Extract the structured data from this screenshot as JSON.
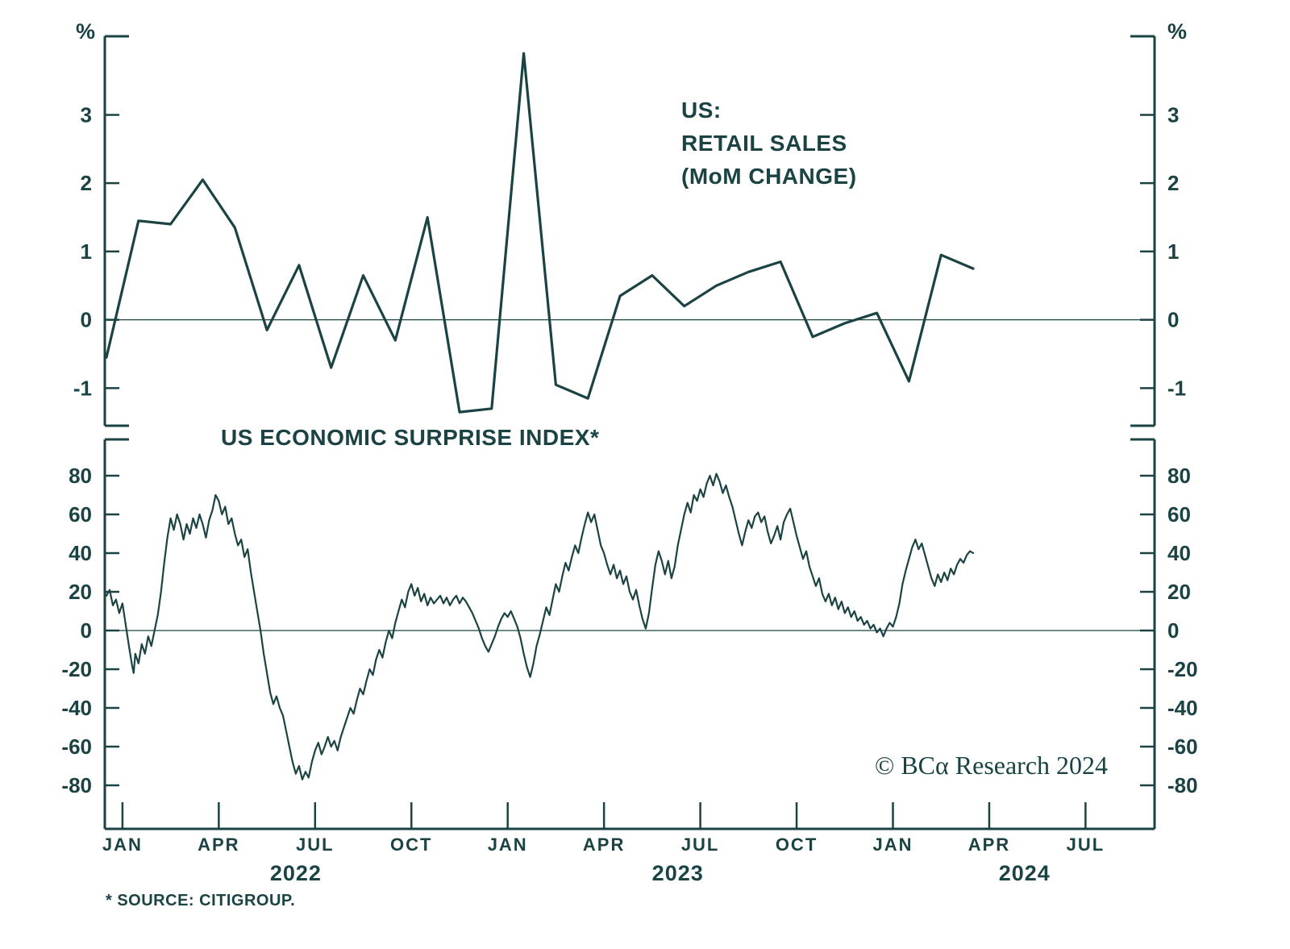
{
  "colors": {
    "ink": "#1b4343",
    "background": "#ffffff"
  },
  "titles": {
    "top_line1": "US:",
    "top_line2": "RETAIL SALES",
    "top_line3": "(MoM CHANGE)",
    "bottom_panel": "US ECONOMIC SURPRISE INDEX*",
    "copyright": "© BCα Research 2024",
    "footnote": "* SOURCE: CITIGROUP.",
    "y_unit_left": "%",
    "y_unit_right": "%"
  },
  "x_axis": {
    "xlim_months": [
      -0.55,
      32.15
    ],
    "ticks": [
      {
        "m": 0,
        "label": "JAN"
      },
      {
        "m": 3,
        "label": "APR"
      },
      {
        "m": 6,
        "label": "JUL"
      },
      {
        "m": 9,
        "label": "OCT"
      },
      {
        "m": 12,
        "label": "JAN"
      },
      {
        "m": 15,
        "label": "APR"
      },
      {
        "m": 18,
        "label": "JUL"
      },
      {
        "m": 21,
        "label": "OCT"
      },
      {
        "m": 24,
        "label": "JAN"
      },
      {
        "m": 27,
        "label": "APR"
      },
      {
        "m": 30,
        "label": "JUL"
      }
    ],
    "years": [
      {
        "m": 5.4,
        "label": "2022"
      },
      {
        "m": 17.3,
        "label": "2023"
      },
      {
        "m": 28.1,
        "label": "2024"
      }
    ]
  },
  "chart_data": [
    {
      "type": "line",
      "title": "US: RETAIL SALES (MoM CHANGE)",
      "ylabel": "%",
      "ylim": [
        -1.55,
        4.15
      ],
      "yticks": [
        -1,
        0,
        1,
        2,
        3
      ],
      "x_start_month": -0.5,
      "x_step_months": 1,
      "values": [
        -0.55,
        1.45,
        1.4,
        2.05,
        1.35,
        -0.15,
        0.8,
        -0.7,
        0.65,
        -0.3,
        1.5,
        -1.35,
        -1.3,
        3.9,
        -0.95,
        -1.15,
        0.35,
        0.65,
        0.2,
        0.5,
        0.7,
        0.85,
        -0.25,
        -0.05,
        0.1,
        -0.9,
        0.95,
        0.75
      ]
    },
    {
      "type": "line",
      "title": "US ECONOMIC SURPRISE INDEX*",
      "ylim": [
        -102.5,
        98.75
      ],
      "yticks": [
        -80,
        -60,
        -40,
        -20,
        0,
        20,
        40,
        60,
        80
      ],
      "points": [
        [
          -0.5,
          18
        ],
        [
          -0.4,
          21
        ],
        [
          -0.3,
          13
        ],
        [
          -0.2,
          16
        ],
        [
          -0.1,
          9
        ],
        [
          0,
          14
        ],
        [
          0.1,
          3
        ],
        [
          0.2,
          -8
        ],
        [
          0.3,
          -18
        ],
        [
          0.35,
          -22
        ],
        [
          0.4,
          -12
        ],
        [
          0.5,
          -17
        ],
        [
          0.6,
          -7
        ],
        [
          0.7,
          -12
        ],
        [
          0.8,
          -3
        ],
        [
          0.9,
          -8
        ],
        [
          1.0,
          0
        ],
        [
          1.1,
          8
        ],
        [
          1.2,
          20
        ],
        [
          1.3,
          35
        ],
        [
          1.4,
          48
        ],
        [
          1.5,
          58
        ],
        [
          1.6,
          52
        ],
        [
          1.7,
          60
        ],
        [
          1.8,
          55
        ],
        [
          1.9,
          47
        ],
        [
          2.0,
          55
        ],
        [
          2.1,
          50
        ],
        [
          2.2,
          58
        ],
        [
          2.3,
          53
        ],
        [
          2.4,
          60
        ],
        [
          2.5,
          55
        ],
        [
          2.6,
          48
        ],
        [
          2.7,
          57
        ],
        [
          2.8,
          62
        ],
        [
          2.9,
          70
        ],
        [
          3.0,
          67
        ],
        [
          3.1,
          60
        ],
        [
          3.2,
          64
        ],
        [
          3.3,
          55
        ],
        [
          3.4,
          58
        ],
        [
          3.5,
          50
        ],
        [
          3.6,
          44
        ],
        [
          3.7,
          47
        ],
        [
          3.8,
          38
        ],
        [
          3.9,
          42
        ],
        [
          4.0,
          30
        ],
        [
          4.1,
          20
        ],
        [
          4.2,
          10
        ],
        [
          4.3,
          0
        ],
        [
          4.4,
          -12
        ],
        [
          4.5,
          -22
        ],
        [
          4.6,
          -32
        ],
        [
          4.7,
          -38
        ],
        [
          4.8,
          -34
        ],
        [
          4.9,
          -40
        ],
        [
          5.0,
          -44
        ],
        [
          5.1,
          -52
        ],
        [
          5.2,
          -60
        ],
        [
          5.3,
          -68
        ],
        [
          5.4,
          -74
        ],
        [
          5.5,
          -70
        ],
        [
          5.6,
          -77
        ],
        [
          5.7,
          -73
        ],
        [
          5.8,
          -76
        ],
        [
          5.9,
          -68
        ],
        [
          6.0,
          -62
        ],
        [
          6.1,
          -58
        ],
        [
          6.2,
          -64
        ],
        [
          6.3,
          -60
        ],
        [
          6.4,
          -55
        ],
        [
          6.5,
          -60
        ],
        [
          6.6,
          -57
        ],
        [
          6.7,
          -62
        ],
        [
          6.8,
          -55
        ],
        [
          6.9,
          -50
        ],
        [
          7.0,
          -45
        ],
        [
          7.1,
          -40
        ],
        [
          7.2,
          -43
        ],
        [
          7.3,
          -36
        ],
        [
          7.4,
          -30
        ],
        [
          7.5,
          -33
        ],
        [
          7.6,
          -26
        ],
        [
          7.7,
          -20
        ],
        [
          7.8,
          -23
        ],
        [
          7.9,
          -15
        ],
        [
          8.0,
          -10
        ],
        [
          8.1,
          -14
        ],
        [
          8.2,
          -6
        ],
        [
          8.3,
          0
        ],
        [
          8.4,
          -4
        ],
        [
          8.5,
          4
        ],
        [
          8.6,
          10
        ],
        [
          8.7,
          16
        ],
        [
          8.8,
          12
        ],
        [
          8.9,
          20
        ],
        [
          9.0,
          24
        ],
        [
          9.1,
          18
        ],
        [
          9.2,
          22
        ],
        [
          9.3,
          15
        ],
        [
          9.4,
          19
        ],
        [
          9.5,
          13
        ],
        [
          9.6,
          17
        ],
        [
          9.7,
          14
        ],
        [
          9.8,
          16
        ],
        [
          9.9,
          18
        ],
        [
          10.0,
          14
        ],
        [
          10.1,
          17
        ],
        [
          10.2,
          13
        ],
        [
          10.3,
          16
        ],
        [
          10.4,
          18
        ],
        [
          10.5,
          14
        ],
        [
          10.6,
          17
        ],
        [
          10.7,
          15
        ],
        [
          10.8,
          12
        ],
        [
          10.9,
          9
        ],
        [
          11.0,
          5
        ],
        [
          11.1,
          1
        ],
        [
          11.2,
          -4
        ],
        [
          11.3,
          -8
        ],
        [
          11.4,
          -11
        ],
        [
          11.5,
          -7
        ],
        [
          11.6,
          -3
        ],
        [
          11.7,
          2
        ],
        [
          11.8,
          6
        ],
        [
          11.9,
          9
        ],
        [
          12.0,
          7
        ],
        [
          12.1,
          10
        ],
        [
          12.2,
          6
        ],
        [
          12.3,
          2
        ],
        [
          12.4,
          -4
        ],
        [
          12.5,
          -12
        ],
        [
          12.6,
          -19
        ],
        [
          12.7,
          -24
        ],
        [
          12.8,
          -17
        ],
        [
          12.9,
          -8
        ],
        [
          13.0,
          -2
        ],
        [
          13.1,
          5
        ],
        [
          13.2,
          12
        ],
        [
          13.3,
          8
        ],
        [
          13.4,
          16
        ],
        [
          13.5,
          24
        ],
        [
          13.6,
          20
        ],
        [
          13.7,
          28
        ],
        [
          13.8,
          35
        ],
        [
          13.9,
          31
        ],
        [
          14.0,
          38
        ],
        [
          14.1,
          44
        ],
        [
          14.2,
          40
        ],
        [
          14.3,
          48
        ],
        [
          14.4,
          55
        ],
        [
          14.5,
          61
        ],
        [
          14.6,
          56
        ],
        [
          14.7,
          60
        ],
        [
          14.8,
          52
        ],
        [
          14.9,
          44
        ],
        [
          15.0,
          40
        ],
        [
          15.1,
          34
        ],
        [
          15.2,
          29
        ],
        [
          15.3,
          34
        ],
        [
          15.4,
          27
        ],
        [
          15.5,
          31
        ],
        [
          15.6,
          24
        ],
        [
          15.7,
          28
        ],
        [
          15.8,
          20
        ],
        [
          15.9,
          16
        ],
        [
          16.0,
          21
        ],
        [
          16.1,
          13
        ],
        [
          16.2,
          6
        ],
        [
          16.3,
          1
        ],
        [
          16.4,
          9
        ],
        [
          16.5,
          22
        ],
        [
          16.6,
          34
        ],
        [
          16.7,
          41
        ],
        [
          16.8,
          36
        ],
        [
          16.9,
          29
        ],
        [
          17.0,
          36
        ],
        [
          17.1,
          27
        ],
        [
          17.2,
          33
        ],
        [
          17.3,
          44
        ],
        [
          17.4,
          52
        ],
        [
          17.5,
          60
        ],
        [
          17.6,
          66
        ],
        [
          17.7,
          61
        ],
        [
          17.8,
          70
        ],
        [
          17.9,
          67
        ],
        [
          18.0,
          73
        ],
        [
          18.1,
          69
        ],
        [
          18.2,
          76
        ],
        [
          18.3,
          80
        ],
        [
          18.4,
          75
        ],
        [
          18.5,
          81
        ],
        [
          18.6,
          77
        ],
        [
          18.7,
          71
        ],
        [
          18.8,
          75
        ],
        [
          18.9,
          69
        ],
        [
          19.0,
          64
        ],
        [
          19.1,
          57
        ],
        [
          19.2,
          50
        ],
        [
          19.3,
          44
        ],
        [
          19.4,
          51
        ],
        [
          19.5,
          57
        ],
        [
          19.6,
          53
        ],
        [
          19.7,
          59
        ],
        [
          19.8,
          61
        ],
        [
          19.9,
          56
        ],
        [
          20.0,
          59
        ],
        [
          20.1,
          51
        ],
        [
          20.2,
          45
        ],
        [
          20.3,
          49
        ],
        [
          20.4,
          54
        ],
        [
          20.5,
          47
        ],
        [
          20.6,
          56
        ],
        [
          20.7,
          60
        ],
        [
          20.8,
          63
        ],
        [
          20.9,
          56
        ],
        [
          21.0,
          49
        ],
        [
          21.1,
          43
        ],
        [
          21.2,
          37
        ],
        [
          21.3,
          41
        ],
        [
          21.4,
          33
        ],
        [
          21.5,
          28
        ],
        [
          21.6,
          23
        ],
        [
          21.7,
          27
        ],
        [
          21.8,
          19
        ],
        [
          21.9,
          15
        ],
        [
          22.0,
          19
        ],
        [
          22.1,
          13
        ],
        [
          22.2,
          17
        ],
        [
          22.3,
          11
        ],
        [
          22.4,
          15
        ],
        [
          22.5,
          9
        ],
        [
          22.6,
          12
        ],
        [
          22.7,
          7
        ],
        [
          22.8,
          10
        ],
        [
          22.9,
          5
        ],
        [
          23.0,
          7
        ],
        [
          23.1,
          3
        ],
        [
          23.2,
          5
        ],
        [
          23.3,
          1
        ],
        [
          23.4,
          3
        ],
        [
          23.5,
          -1
        ],
        [
          23.6,
          1
        ],
        [
          23.7,
          -3
        ],
        [
          23.8,
          1
        ],
        [
          23.9,
          4
        ],
        [
          24.0,
          2
        ],
        [
          24.1,
          7
        ],
        [
          24.2,
          14
        ],
        [
          24.3,
          24
        ],
        [
          24.4,
          31
        ],
        [
          24.5,
          37
        ],
        [
          24.6,
          43
        ],
        [
          24.7,
          47
        ],
        [
          24.8,
          42
        ],
        [
          24.9,
          45
        ],
        [
          25.0,
          39
        ],
        [
          25.1,
          33
        ],
        [
          25.2,
          27
        ],
        [
          25.3,
          23
        ],
        [
          25.4,
          29
        ],
        [
          25.5,
          25
        ],
        [
          25.6,
          30
        ],
        [
          25.7,
          26
        ],
        [
          25.8,
          32
        ],
        [
          25.9,
          29
        ],
        [
          26.0,
          34
        ],
        [
          26.1,
          37
        ],
        [
          26.2,
          35
        ],
        [
          26.3,
          39
        ],
        [
          26.4,
          41
        ],
        [
          26.5,
          40
        ]
      ]
    }
  ]
}
